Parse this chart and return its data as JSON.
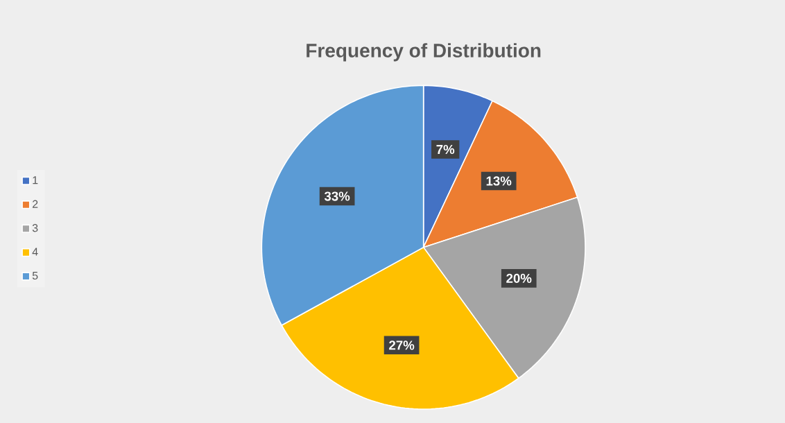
{
  "chart_data": {
    "type": "pie",
    "title": "Frequency of Distribution",
    "categories": [
      "1",
      "2",
      "3",
      "4",
      "5"
    ],
    "values": [
      7,
      13,
      20,
      27,
      33
    ],
    "colors": [
      "#4472c4",
      "#ed7d31",
      "#a5a5a5",
      "#ffc000",
      "#5b9bd5"
    ],
    "value_labels": [
      "7%",
      "13%",
      "20%",
      "27%",
      "33%"
    ],
    "legend": "left"
  }
}
